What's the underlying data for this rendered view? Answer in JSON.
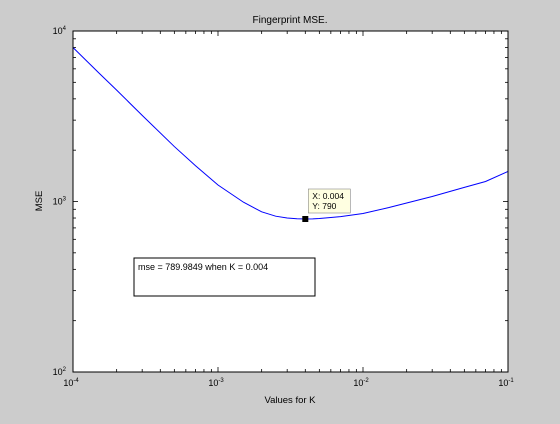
{
  "chart_data": {
    "type": "line",
    "title": "Fingerprint MSE.",
    "xlabel": "Values for K",
    "ylabel": "MSE",
    "x_scale": "log",
    "y_scale": "log",
    "xlim": [
      0.0001,
      0.1
    ],
    "ylim": [
      100,
      10000
    ],
    "x_ticks": [
      {
        "base": "10",
        "exp": "-4",
        "value": 0.0001
      },
      {
        "base": "10",
        "exp": "-3",
        "value": 0.001
      },
      {
        "base": "10",
        "exp": "-2",
        "value": 0.01
      },
      {
        "base": "10",
        "exp": "-1",
        "value": 0.1
      }
    ],
    "y_ticks": [
      {
        "base": "10",
        "exp": "2",
        "value": 100
      },
      {
        "base": "10",
        "exp": "3",
        "value": 1000
      },
      {
        "base": "10",
        "exp": "4",
        "value": 10000
      }
    ],
    "grid": false,
    "series": [
      {
        "color": "#0000ff",
        "x": [
          0.0001,
          0.00015,
          0.0002,
          0.0003,
          0.0005,
          0.0007,
          0.001,
          0.0015,
          0.002,
          0.0025,
          0.003,
          0.0035,
          0.004,
          0.0045,
          0.005,
          0.006,
          0.007,
          0.01,
          0.015,
          0.02,
          0.03,
          0.05,
          0.07,
          0.1
        ],
        "y": [
          8000,
          5700,
          4500,
          3200,
          2100,
          1620,
          1250,
          990,
          870,
          820,
          800,
          792,
          790,
          791,
          795,
          805,
          815,
          850,
          920,
          980,
          1070,
          1210,
          1310,
          1500
        ]
      }
    ],
    "datatip": {
      "x": 0.004,
      "y": 790,
      "line1": "X: 0.004",
      "line2": "Y: 790"
    },
    "annotation": "mse = 789.9849 when K = 0.004"
  },
  "colors": {
    "figure_bg": "#cccccc",
    "axes_bg": "#ffffff",
    "line": "#0000ff",
    "datatip_bg": "#ffffe1"
  }
}
